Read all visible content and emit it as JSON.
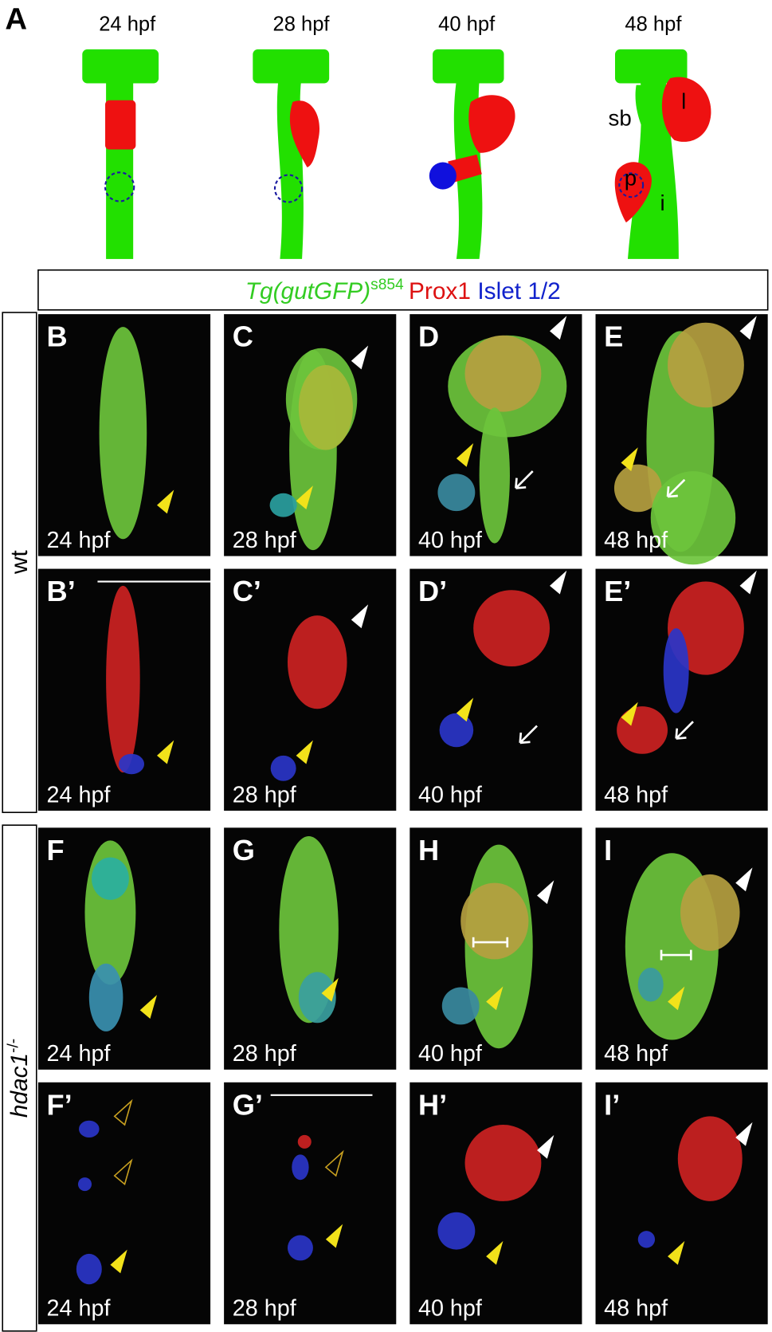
{
  "panel_a": {
    "label": "A",
    "stages": [
      "24 hpf",
      "28 hpf",
      "40 hpf",
      "48 hpf"
    ],
    "organ_labels": {
      "sb": "sb",
      "l": "l",
      "p": "p",
      "i": "i"
    }
  },
  "legend": {
    "gfp": "Tg(gutGFP)",
    "gfp_sup": "s854",
    "prox": "Prox1",
    "islet": "Islet 1/2"
  },
  "genotypes": [
    {
      "name": "wt"
    },
    {
      "name": "hdac1",
      "sup": "-/-"
    }
  ],
  "rows": [
    {
      "panels": [
        {
          "label": "B",
          "time": "24 hpf"
        },
        {
          "label": "C",
          "time": "28 hpf"
        },
        {
          "label": "D",
          "time": "40 hpf"
        },
        {
          "label": "E",
          "time": "48 hpf"
        }
      ]
    },
    {
      "panels": [
        {
          "label": "B’",
          "time": "24 hpf"
        },
        {
          "label": "C’",
          "time": "28 hpf"
        },
        {
          "label": "D’",
          "time": "40 hpf"
        },
        {
          "label": "E’",
          "time": "48 hpf"
        }
      ]
    },
    {
      "panels": [
        {
          "label": "F",
          "time": "24 hpf"
        },
        {
          "label": "G",
          "time": "28 hpf"
        },
        {
          "label": "H",
          "time": "40 hpf"
        },
        {
          "label": "I",
          "time": "48 hpf"
        }
      ]
    },
    {
      "panels": [
        {
          "label": "F’",
          "time": "24 hpf"
        },
        {
          "label": "G’",
          "time": "28 hpf"
        },
        {
          "label": "H’",
          "time": "40 hpf"
        },
        {
          "label": "I’",
          "time": "48 hpf"
        }
      ]
    }
  ]
}
